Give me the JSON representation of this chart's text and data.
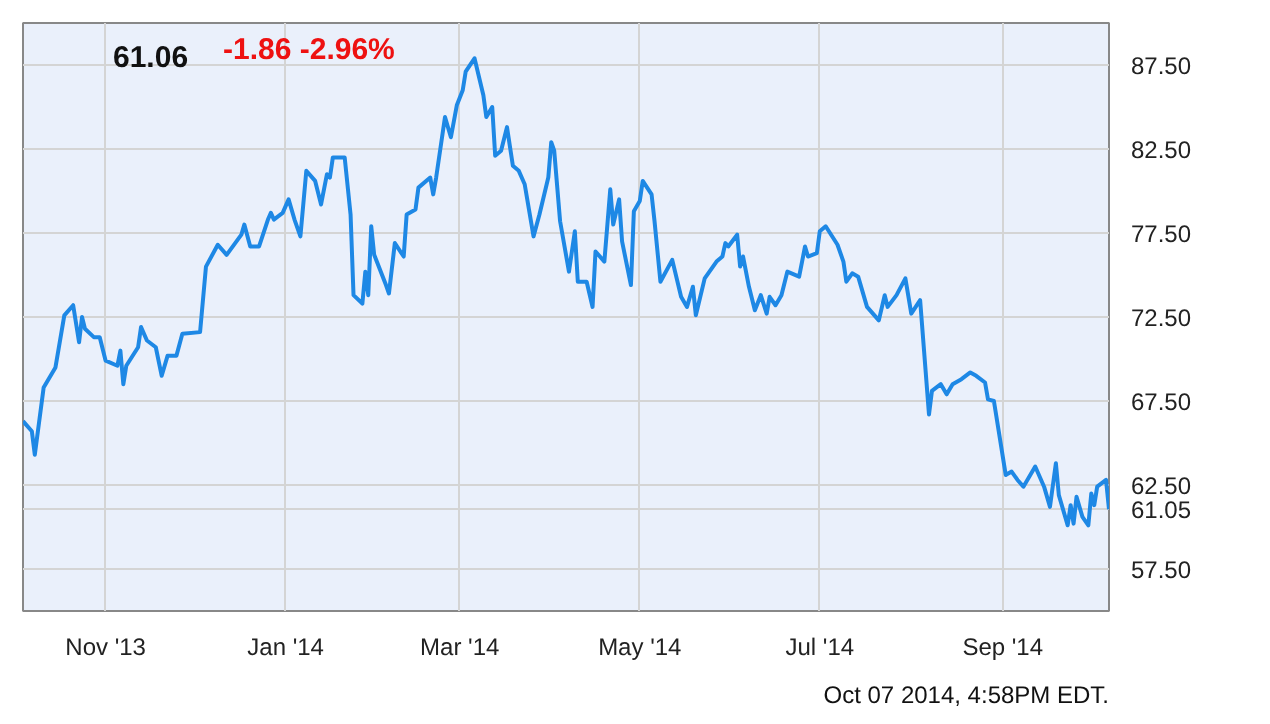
{
  "chart_data": {
    "type": "line",
    "title": "61.06",
    "subtitle": "-1.86 -2.96%",
    "x": [
      "2013-10-04",
      "2013-10-07",
      "2013-10-08",
      "2013-10-11",
      "2013-10-15",
      "2013-10-18",
      "2013-10-21",
      "2013-10-23",
      "2013-10-24",
      "2013-10-25",
      "2013-10-28",
      "2013-10-30",
      "2013-11-01",
      "2013-11-05",
      "2013-11-06",
      "2013-11-07",
      "2013-11-08",
      "2013-11-12",
      "2013-11-13",
      "2013-11-15",
      "2013-11-18",
      "2013-11-20",
      "2013-11-22",
      "2013-11-25",
      "2013-11-27",
      "2013-12-03",
      "2013-12-05",
      "2013-12-09",
      "2013-12-12",
      "2013-12-17",
      "2013-12-18",
      "2013-12-20",
      "2013-12-23",
      "2013-12-26",
      "2013-12-27",
      "2013-12-28",
      "2013-12-31",
      "2014-01-02",
      "2014-01-04",
      "2014-01-06",
      "2014-01-08",
      "2014-01-11",
      "2014-01-13",
      "2014-01-15",
      "2014-01-16",
      "2014-01-17",
      "2014-01-21",
      "2014-01-23",
      "2014-01-24",
      "2014-01-27",
      "2014-01-28",
      "2014-01-29",
      "2014-01-30",
      "2014-01-31",
      "2014-02-04",
      "2014-02-05",
      "2014-02-07",
      "2014-02-10",
      "2014-02-11",
      "2014-02-14",
      "2014-02-15",
      "2014-02-19",
      "2014-02-20",
      "2014-02-21",
      "2014-02-24",
      "2014-02-26",
      "2014-02-28",
      "2014-03-02",
      "2014-03-03",
      "2014-03-06",
      "2014-03-09",
      "2014-03-10",
      "2014-03-12",
      "2014-03-13",
      "2014-03-15",
      "2014-03-17",
      "2014-03-19",
      "2014-03-21",
      "2014-03-23",
      "2014-03-26",
      "2014-03-28",
      "2014-03-31",
      "2014-04-01",
      "2014-04-02",
      "2014-04-04",
      "2014-04-07",
      "2014-04-09",
      "2014-04-10",
      "2014-04-13",
      "2014-04-15",
      "2014-04-16",
      "2014-04-19",
      "2014-04-21",
      "2014-04-22",
      "2014-04-24",
      "2014-04-25",
      "2014-04-28",
      "2014-04-29",
      "2014-05-01",
      "2014-05-02",
      "2014-05-05",
      "2014-05-06",
      "2014-05-08",
      "2014-05-12",
      "2014-05-15",
      "2014-05-17",
      "2014-05-19",
      "2014-05-20",
      "2014-05-23",
      "2014-05-27",
      "2014-05-29",
      "2014-05-30",
      "2014-05-31",
      "2014-06-03",
      "2014-06-04",
      "2014-06-05",
      "2014-06-07",
      "2014-06-09",
      "2014-06-11",
      "2014-06-13",
      "2014-06-14",
      "2014-06-16",
      "2014-06-18",
      "2014-06-20",
      "2014-06-24",
      "2014-06-26",
      "2014-06-27",
      "2014-06-30",
      "2014-07-01",
      "2014-07-03",
      "2014-07-07",
      "2014-07-09",
      "2014-07-10",
      "2014-07-12",
      "2014-07-14",
      "2014-07-17",
      "2014-07-21",
      "2014-07-23",
      "2014-07-24",
      "2014-07-27",
      "2014-07-30",
      "2014-08-01",
      "2014-08-04",
      "2014-08-07",
      "2014-08-08",
      "2014-08-11",
      "2014-08-13",
      "2014-08-15",
      "2014-08-18",
      "2014-08-21",
      "2014-08-23",
      "2014-08-26",
      "2014-08-27",
      "2014-08-29",
      "2014-09-02",
      "2014-09-04",
      "2014-09-06",
      "2014-09-08",
      "2014-09-12",
      "2014-09-15",
      "2014-09-17",
      "2014-09-19",
      "2014-09-20",
      "2014-09-23",
      "2014-09-24",
      "2014-09-25",
      "2014-09-26",
      "2014-09-28",
      "2014-09-30",
      "2014-10-01",
      "2014-10-02",
      "2014-10-03",
      "2014-10-06",
      "2014-10-07"
    ],
    "series": [
      {
        "color": "#1e88e5",
        "values": [
          66.3,
          65.7,
          64.3,
          68.3,
          69.5,
          72.6,
          73.2,
          71.0,
          72.5,
          71.8,
          71.3,
          71.3,
          69.9,
          69.6,
          70.5,
          68.5,
          69.6,
          70.7,
          71.9,
          71.1,
          70.7,
          69.0,
          70.2,
          70.2,
          71.5,
          71.6,
          75.5,
          76.8,
          76.2,
          77.4,
          78.0,
          76.7,
          76.7,
          78.3,
          78.7,
          78.3,
          78.7,
          79.5,
          78.3,
          77.3,
          81.2,
          80.6,
          79.2,
          81.0,
          80.8,
          82.0,
          82.0,
          78.6,
          73.8,
          73.3,
          75.2,
          73.8,
          77.9,
          76.2,
          74.4,
          73.9,
          76.9,
          76.1,
          78.6,
          78.9,
          80.2,
          80.8,
          79.8,
          80.8,
          84.4,
          83.2,
          85.1,
          86.0,
          87.1,
          87.9,
          85.7,
          84.4,
          85.0,
          82.1,
          82.4,
          83.8,
          81.5,
          81.2,
          80.4,
          77.3,
          78.6,
          80.8,
          82.9,
          82.4,
          78.2,
          75.2,
          77.6,
          74.6,
          74.6,
          73.1,
          76.4,
          75.8,
          80.1,
          78.0,
          79.5,
          77.0,
          74.4,
          78.8,
          79.4,
          80.6,
          79.8,
          78.2,
          74.6,
          75.9,
          73.7,
          73.1,
          74.3,
          72.6,
          74.8,
          75.8,
          76.1,
          76.9,
          76.7,
          77.4,
          75.5,
          76.1,
          74.3,
          72.9,
          73.8,
          72.7,
          73.7,
          73.2,
          73.8,
          75.2,
          74.9,
          76.7,
          76.1,
          76.3,
          77.6,
          77.9,
          76.8,
          75.8,
          74.6,
          75.1,
          74.9,
          73.1,
          72.3,
          73.8,
          73.1,
          73.8,
          74.8,
          72.7,
          73.5,
          66.7,
          68.1,
          68.5,
          67.9,
          68.5,
          68.8,
          69.2,
          69.0,
          68.6,
          67.6,
          67.5,
          63.1,
          63.3,
          62.8,
          62.4,
          63.6,
          62.4,
          61.2,
          63.8,
          61.9,
          60.1,
          61.3,
          60.2,
          61.8,
          60.6,
          60.1,
          62.0,
          61.3,
          62.4,
          62.8,
          61.05
        ]
      }
    ],
    "xlim": [
      "2013-10-04",
      "2014-10-07"
    ],
    "xticks": [
      {
        "value": "2013-11-01",
        "label": "Nov '13"
      },
      {
        "value": "2014-01-01",
        "label": "Jan '14"
      },
      {
        "value": "2014-03-01",
        "label": "Mar '14"
      },
      {
        "value": "2014-05-01",
        "label": "May '14"
      },
      {
        "value": "2014-07-01",
        "label": "Jul '14"
      },
      {
        "value": "2014-09-01",
        "label": "Sep '14"
      }
    ],
    "ylim": [
      55,
      90
    ],
    "yticks": [
      {
        "value": 57.5,
        "label": "57.50"
      },
      {
        "value": 62.5,
        "label": "62.50"
      },
      {
        "value": 67.5,
        "label": "67.50"
      },
      {
        "value": 72.5,
        "label": "72.50"
      },
      {
        "value": 77.5,
        "label": "77.50"
      },
      {
        "value": 82.5,
        "label": "82.50"
      },
      {
        "value": 87.5,
        "label": "87.50"
      },
      {
        "value": 61.05,
        "label": "61.05"
      }
    ],
    "grid": true,
    "marker": "none",
    "line_style": "solid",
    "annotations": [
      "Oct 07 2014, 4:58PM EDT."
    ]
  }
}
